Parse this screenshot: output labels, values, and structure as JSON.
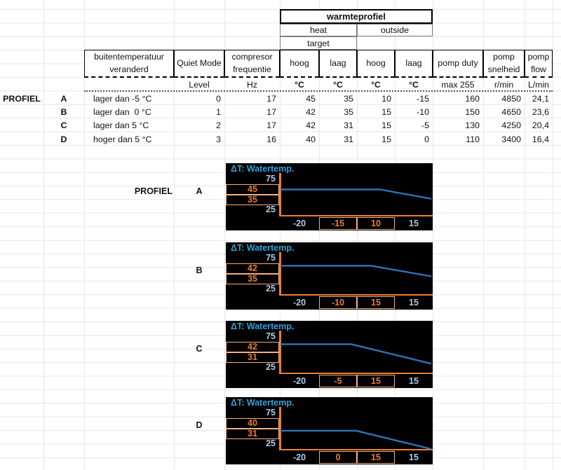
{
  "table": {
    "group_header": "warmteprofiel",
    "sub_headers": {
      "heat": "heat",
      "outside": "outside",
      "target": "target"
    },
    "columns": [
      {
        "line1": "buitentemperatuur",
        "line2": "veranderd",
        "unit": ""
      },
      {
        "line1": "Quiet Mode",
        "unit": "Level"
      },
      {
        "line1": "compresor",
        "line2": "frequentie",
        "unit": "Hz"
      },
      {
        "line1": "hoog",
        "unit": "°C"
      },
      {
        "line1": "laag",
        "unit": "°C"
      },
      {
        "line1": "hoog",
        "unit": "°C"
      },
      {
        "line1": "laag",
        "unit": "°C"
      },
      {
        "line1": "pomp duty",
        "unit": "max 255"
      },
      {
        "line1": "pomp",
        "line2": "snelheid",
        "unit": "r/min"
      },
      {
        "line1": "pomp",
        "line2": "flow",
        "unit": "L/min"
      }
    ],
    "row_header": "PROFIEL",
    "rows": [
      {
        "letter": "A",
        "condition": "lager dan -5 °C",
        "quiet": "0",
        "freq": "17",
        "heat_hoog": "45",
        "heat_laag": "35",
        "out_hoog": "10",
        "out_laag": "-15",
        "duty": "160",
        "speed": "4850",
        "flow": "24,1"
      },
      {
        "letter": "B",
        "condition": "lager dan  0 °C",
        "quiet": "1",
        "freq": "17",
        "heat_hoog": "42",
        "heat_laag": "35",
        "out_hoog": "15",
        "out_laag": "-10",
        "duty": "150",
        "speed": "4650",
        "flow": "23,6"
      },
      {
        "letter": "C",
        "condition": "lager dan 5 °C",
        "quiet": "2",
        "freq": "17",
        "heat_hoog": "42",
        "heat_laag": "31",
        "out_hoog": "15",
        "out_laag": "-5",
        "duty": "130",
        "speed": "4250",
        "flow": "20,4"
      },
      {
        "letter": "D",
        "condition": "hoger dan 5 °C",
        "quiet": "3",
        "freq": "16",
        "heat_hoog": "40",
        "heat_laag": "31",
        "out_hoog": "15",
        "out_laag": "0",
        "duty": "110",
        "speed": "3400",
        "flow": "16,4"
      }
    ]
  },
  "charts": {
    "section_label": "PROFIEL",
    "title": "ΔT: Watertemp.",
    "y_top": "75",
    "y_bottom": "25",
    "items": [
      {
        "letter": "A",
        "hoog": "45",
        "laag": "35",
        "x_labels": [
          "-20",
          "-15",
          "10",
          "15"
        ],
        "line": {
          "flat": 0.37,
          "break": 0.66,
          "end": 0.6
        }
      },
      {
        "letter": "B",
        "hoog": "42",
        "laag": "35",
        "x_labels": [
          "-20",
          "-10",
          "15",
          "15"
        ],
        "line": {
          "flat": 0.3,
          "break": 0.6,
          "end": 0.56
        }
      },
      {
        "letter": "C",
        "hoog": "42",
        "laag": "31",
        "x_labels": [
          "-20",
          "-5",
          "15",
          "15"
        ],
        "line": {
          "flat": 0.3,
          "break": 0.47,
          "end": 0.78
        }
      },
      {
        "letter": "D",
        "hoog": "40",
        "laag": "31",
        "x_labels": [
          "-20",
          "0",
          "15",
          "15"
        ],
        "line": {
          "flat": 0.55,
          "break": 0.5,
          "end": 1.0
        }
      }
    ]
  },
  "chart_data": [
    {
      "type": "line",
      "title": "ΔT: Watertemp.",
      "profile": "A",
      "y_axis_labels": [
        75,
        45,
        35,
        25
      ],
      "x_axis_labels": [
        -20,
        -15,
        10,
        15
      ],
      "highlight_y": [
        45,
        35
      ],
      "highlight_x": [
        -15,
        10
      ],
      "series": [
        {
          "name": "watertemp",
          "shape": "flat at 45 until outside temp 10, then declining toward 35"
        }
      ]
    },
    {
      "type": "line",
      "title": "ΔT: Watertemp.",
      "profile": "B",
      "y_axis_labels": [
        75,
        42,
        35,
        25
      ],
      "x_axis_labels": [
        -20,
        -10,
        15,
        15
      ],
      "highlight_y": [
        42,
        35
      ],
      "highlight_x": [
        -10,
        15
      ],
      "series": [
        {
          "name": "watertemp",
          "shape": "flat at 42 until outside temp 15, then declining toward 35"
        }
      ]
    },
    {
      "type": "line",
      "title": "ΔT: Watertemp.",
      "profile": "C",
      "y_axis_labels": [
        75,
        42,
        31,
        25
      ],
      "x_axis_labels": [
        -20,
        -5,
        15,
        15
      ],
      "highlight_y": [
        42,
        31
      ],
      "highlight_x": [
        -5,
        15
      ],
      "series": [
        {
          "name": "watertemp",
          "shape": "flat at 42, then declining toward 31"
        }
      ]
    },
    {
      "type": "line",
      "title": "ΔT: Watertemp.",
      "profile": "D",
      "y_axis_labels": [
        75,
        40,
        31,
        25
      ],
      "x_axis_labels": [
        -20,
        0,
        15,
        15
      ],
      "highlight_y": [
        40,
        31
      ],
      "highlight_x": [
        0,
        15
      ],
      "series": [
        {
          "name": "watertemp",
          "shape": "flat at 40, then declining to 25 at right edge"
        }
      ]
    }
  ],
  "colors": {
    "accent_orange": "#ED7D31",
    "peach_border": "#F4B183",
    "light_blue": "#A9CDEC",
    "title_blue": "#33A1DB",
    "line_blue": "#2E75B6",
    "panel_black": "#000000",
    "gridline": "#E6E6E6"
  }
}
